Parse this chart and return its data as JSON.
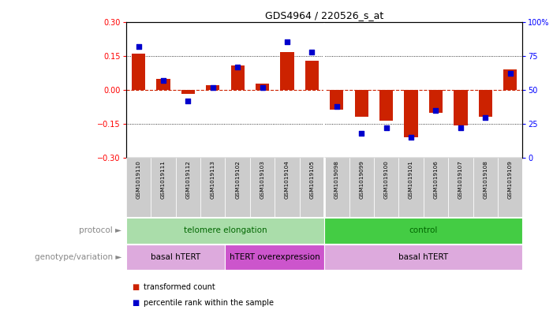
{
  "title": "GDS4964 / 220526_s_at",
  "samples": [
    "GSM1019110",
    "GSM1019111",
    "GSM1019112",
    "GSM1019113",
    "GSM1019102",
    "GSM1019103",
    "GSM1019104",
    "GSM1019105",
    "GSM1019098",
    "GSM1019099",
    "GSM1019100",
    "GSM1019101",
    "GSM1019106",
    "GSM1019107",
    "GSM1019108",
    "GSM1019109"
  ],
  "red_bars": [
    0.158,
    0.048,
    -0.018,
    0.02,
    0.108,
    0.028,
    0.168,
    0.128,
    -0.088,
    -0.118,
    -0.135,
    -0.21,
    -0.1,
    -0.155,
    -0.118,
    0.09
  ],
  "blue_pcts": [
    82,
    57,
    42,
    52,
    67,
    52,
    85,
    78,
    38,
    18,
    22,
    15,
    35,
    22,
    30,
    62
  ],
  "ylim_left": [
    -0.3,
    0.3
  ],
  "ylim_right": [
    0,
    100
  ],
  "yticks_left": [
    -0.3,
    -0.15,
    0.0,
    0.15,
    0.3
  ],
  "yticks_right": [
    0,
    25,
    50,
    75,
    100
  ],
  "ytick_labels_right": [
    "0",
    "25",
    "50",
    "75",
    "100%"
  ],
  "hlines": [
    0.15,
    -0.15
  ],
  "bar_color": "#cc2200",
  "dot_color": "#0000cc",
  "zero_line_color": "#cc2200",
  "protocol_groups": [
    {
      "label": "telomere elongation",
      "start": 0,
      "end": 8,
      "color": "#aaddaa"
    },
    {
      "label": "control",
      "start": 8,
      "end": 16,
      "color": "#44cc44"
    }
  ],
  "genotype_groups": [
    {
      "label": "basal hTERT",
      "start": 0,
      "end": 4,
      "color": "#ddaadd"
    },
    {
      "label": "hTERT overexpression",
      "start": 4,
      "end": 8,
      "color": "#cc55cc"
    },
    {
      "label": "basal hTERT",
      "start": 8,
      "end": 16,
      "color": "#ddaadd"
    }
  ],
  "legend_items": [
    {
      "label": "transformed count",
      "color": "#cc2200"
    },
    {
      "label": "percentile rank within the sample",
      "color": "#0000cc"
    }
  ],
  "bg_color": "#ffffff",
  "tick_bg": "#cccccc",
  "sample_cell_color": "#cccccc"
}
